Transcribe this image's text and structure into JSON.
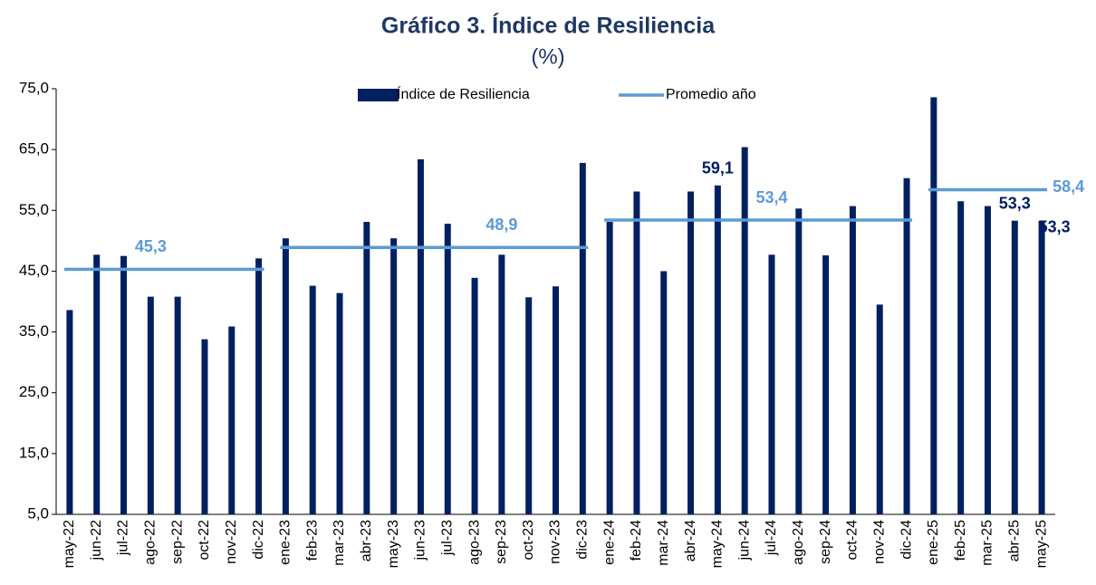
{
  "chart_data": {
    "type": "bar",
    "title": "Gráfico 3. Índice de Resiliencia",
    "subtitle": "(%)",
    "categories": [
      "may-22",
      "jun-22",
      "jul-22",
      "ago-22",
      "sep-22",
      "oct-22",
      "nov-22",
      "dic-22",
      "ene-23",
      "feb-23",
      "mar-23",
      "abr-23",
      "may-23",
      "jun-23",
      "jul-23",
      "ago-23",
      "sep-23",
      "oct-23",
      "nov-23",
      "dic-23",
      "ene-24",
      "feb-24",
      "mar-24",
      "abr-24",
      "may-24",
      "jun-24",
      "jul-24",
      "ago-24",
      "sep-24",
      "oct-24",
      "nov-24",
      "dic-24",
      "ene-25",
      "feb-25",
      "mar-25",
      "abr-25",
      "may-25"
    ],
    "series": [
      {
        "name": "Índice de Resiliencia",
        "color": "#002060",
        "type": "bar",
        "values": [
          38.6,
          47.7,
          47.5,
          40.8,
          40.8,
          33.8,
          35.9,
          47.1,
          50.4,
          42.6,
          41.4,
          53.1,
          50.4,
          63.4,
          52.8,
          43.9,
          47.7,
          40.7,
          42.5,
          62.8,
          53.1,
          58.1,
          45.0,
          58.1,
          59.1,
          65.4,
          47.7,
          55.3,
          47.6,
          55.7,
          39.5,
          60.3,
          73.6,
          56.5,
          55.7,
          53.3,
          53.3
        ],
        "value_labels": [
          null,
          null,
          null,
          null,
          null,
          null,
          null,
          null,
          null,
          null,
          null,
          null,
          null,
          null,
          null,
          null,
          null,
          null,
          null,
          null,
          null,
          null,
          null,
          null,
          "59,1",
          null,
          null,
          null,
          null,
          null,
          null,
          null,
          null,
          null,
          null,
          "53,3",
          "53,3"
        ]
      },
      {
        "name": "Promedio año",
        "color": "#5b9bd5",
        "type": "line",
        "values": [
          45.3,
          45.3,
          45.3,
          45.3,
          45.3,
          45.3,
          45.3,
          45.3,
          48.9,
          48.9,
          48.9,
          48.9,
          48.9,
          48.9,
          48.9,
          48.9,
          48.9,
          48.9,
          48.9,
          48.9,
          53.4,
          53.4,
          53.4,
          53.4,
          53.4,
          53.4,
          53.4,
          53.4,
          53.4,
          53.4,
          53.4,
          53.4,
          58.4,
          58.4,
          58.4,
          58.4,
          58.4
        ],
        "value_labels": [
          null,
          null,
          null,
          "45,3",
          null,
          null,
          null,
          null,
          null,
          null,
          null,
          null,
          null,
          null,
          null,
          null,
          "48,9",
          null,
          null,
          null,
          null,
          null,
          null,
          null,
          null,
          null,
          "53,4",
          null,
          null,
          null,
          null,
          null,
          null,
          null,
          null,
          null,
          "58,4"
        ]
      }
    ],
    "ylim": [
      5,
      75
    ],
    "yticks": [
      {
        "value": 5,
        "label": "5,0"
      },
      {
        "value": 15,
        "label": "15,0"
      },
      {
        "value": 25,
        "label": "25,0"
      },
      {
        "value": 35,
        "label": "35,0"
      },
      {
        "value": 45,
        "label": "45,0"
      },
      {
        "value": 55,
        "label": "55,0"
      },
      {
        "value": 65,
        "label": "65,0"
      },
      {
        "value": 75,
        "label": "75,0"
      }
    ],
    "legend": "top"
  }
}
